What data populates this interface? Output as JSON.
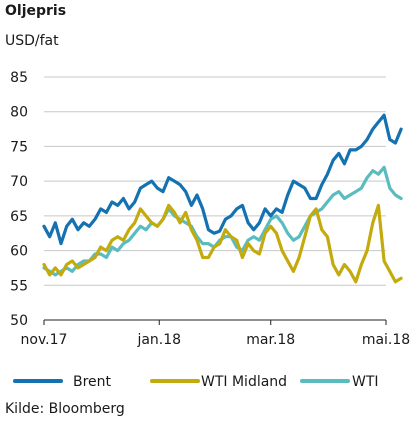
{
  "header": {
    "title": "Oljepris",
    "unit": "USD/fat"
  },
  "footer": {
    "source": "Kilde: Bloomberg"
  },
  "chart_data": {
    "type": "line",
    "title": "Oljepris",
    "ylabel": "USD/fat",
    "xlabel": "",
    "ylim": [
      50,
      85
    ],
    "yticks": [
      50,
      55,
      60,
      65,
      70,
      75,
      80,
      85
    ],
    "xlim": [
      "2017-11-01",
      "2018-05-01"
    ],
    "xticks": [
      {
        "date": "2017-11-01",
        "label": "nov.17"
      },
      {
        "date": "2018-01-01",
        "label": "jan.18"
      },
      {
        "date": "2018-03-01",
        "label": "mar.18"
      },
      {
        "date": "2018-05-01",
        "label": "mai.18"
      }
    ],
    "grid": "horizontal",
    "legend": "bottom",
    "series": [
      {
        "name": "Brent",
        "color": "#1572b0",
        "points": [
          [
            "2017-11-01",
            63.5
          ],
          [
            "2017-11-04",
            62.0
          ],
          [
            "2017-11-07",
            64.0
          ],
          [
            "2017-11-10",
            61.0
          ],
          [
            "2017-11-13",
            63.5
          ],
          [
            "2017-11-16",
            64.5
          ],
          [
            "2017-11-19",
            63.0
          ],
          [
            "2017-11-22",
            64.0
          ],
          [
            "2017-11-25",
            63.5
          ],
          [
            "2017-11-28",
            64.5
          ],
          [
            "2017-12-01",
            66.0
          ],
          [
            "2017-12-04",
            65.5
          ],
          [
            "2017-12-07",
            67.0
          ],
          [
            "2017-12-10",
            66.5
          ],
          [
            "2017-12-13",
            67.5
          ],
          [
            "2017-12-16",
            66.0
          ],
          [
            "2017-12-19",
            67.0
          ],
          [
            "2017-12-22",
            69.0
          ],
          [
            "2017-12-25",
            69.5
          ],
          [
            "2017-12-28",
            70.0
          ],
          [
            "2017-12-31",
            69.0
          ],
          [
            "2018-01-03",
            68.5
          ],
          [
            "2018-01-06",
            70.5
          ],
          [
            "2018-01-09",
            70.0
          ],
          [
            "2018-01-12",
            69.5
          ],
          [
            "2018-01-15",
            68.5
          ],
          [
            "2018-01-18",
            66.5
          ],
          [
            "2018-01-21",
            68.0
          ],
          [
            "2018-01-24",
            66.0
          ],
          [
            "2018-01-27",
            63.0
          ],
          [
            "2018-01-30",
            62.5
          ],
          [
            "2018-02-02",
            62.8
          ],
          [
            "2018-02-05",
            64.5
          ],
          [
            "2018-02-08",
            65.0
          ],
          [
            "2018-02-11",
            66.0
          ],
          [
            "2018-02-14",
            66.5
          ],
          [
            "2018-02-17",
            64.0
          ],
          [
            "2018-02-20",
            63.0
          ],
          [
            "2018-02-23",
            64.0
          ],
          [
            "2018-02-26",
            66.0
          ],
          [
            "2018-03-01",
            65.0
          ],
          [
            "2018-03-04",
            66.0
          ],
          [
            "2018-03-07",
            65.5
          ],
          [
            "2018-03-10",
            68.0
          ],
          [
            "2018-03-13",
            70.0
          ],
          [
            "2018-03-16",
            69.5
          ],
          [
            "2018-03-19",
            69.0
          ],
          [
            "2018-03-22",
            67.5
          ],
          [
            "2018-03-25",
            67.5
          ],
          [
            "2018-03-28",
            69.5
          ],
          [
            "2018-03-31",
            71.0
          ],
          [
            "2018-04-03",
            73.0
          ],
          [
            "2018-04-06",
            74.0
          ],
          [
            "2018-04-09",
            72.5
          ],
          [
            "2018-04-12",
            74.5
          ],
          [
            "2018-04-15",
            74.5
          ],
          [
            "2018-04-18",
            75.0
          ],
          [
            "2018-04-21",
            76.0
          ],
          [
            "2018-04-24",
            77.5
          ],
          [
            "2018-04-27",
            78.5
          ],
          [
            "2018-04-30",
            79.5
          ],
          [
            "2018-05-03",
            76.0
          ],
          [
            "2018-05-06",
            75.5
          ],
          [
            "2018-05-09",
            77.5
          ]
        ]
      },
      {
        "name": "WTI Midland",
        "color": "#c3ab0e",
        "points": [
          [
            "2017-11-01",
            58.0
          ],
          [
            "2017-11-04",
            56.5
          ],
          [
            "2017-11-07",
            57.5
          ],
          [
            "2017-11-10",
            56.5
          ],
          [
            "2017-11-13",
            58.0
          ],
          [
            "2017-11-16",
            58.5
          ],
          [
            "2017-11-19",
            57.5
          ],
          [
            "2017-11-22",
            58.0
          ],
          [
            "2017-11-25",
            58.5
          ],
          [
            "2017-11-28",
            59.0
          ],
          [
            "2017-12-01",
            60.5
          ],
          [
            "2017-12-04",
            60.0
          ],
          [
            "2017-12-07",
            61.5
          ],
          [
            "2017-12-10",
            62.0
          ],
          [
            "2017-12-13",
            61.5
          ],
          [
            "2017-12-16",
            63.0
          ],
          [
            "2017-12-19",
            64.0
          ],
          [
            "2017-12-22",
            66.0
          ],
          [
            "2017-12-25",
            65.0
          ],
          [
            "2017-12-28",
            64.0
          ],
          [
            "2017-12-31",
            63.5
          ],
          [
            "2018-01-03",
            64.5
          ],
          [
            "2018-01-06",
            66.5
          ],
          [
            "2018-01-09",
            65.5
          ],
          [
            "2018-01-12",
            64.0
          ],
          [
            "2018-01-15",
            65.5
          ],
          [
            "2018-01-18",
            63.0
          ],
          [
            "2018-01-21",
            61.5
          ],
          [
            "2018-01-24",
            59.0
          ],
          [
            "2018-01-27",
            59.0
          ],
          [
            "2018-01-30",
            60.5
          ],
          [
            "2018-02-02",
            61.0
          ],
          [
            "2018-02-05",
            63.0
          ],
          [
            "2018-02-08",
            62.0
          ],
          [
            "2018-02-11",
            61.5
          ],
          [
            "2018-02-14",
            59.0
          ],
          [
            "2018-02-17",
            61.0
          ],
          [
            "2018-02-20",
            60.0
          ],
          [
            "2018-02-23",
            59.5
          ],
          [
            "2018-02-26",
            62.5
          ],
          [
            "2018-03-01",
            63.5
          ],
          [
            "2018-03-04",
            62.5
          ],
          [
            "2018-03-07",
            60.0
          ],
          [
            "2018-03-10",
            58.5
          ],
          [
            "2018-03-13",
            57.0
          ],
          [
            "2018-03-16",
            59.0
          ],
          [
            "2018-03-19",
            62.0
          ],
          [
            "2018-03-22",
            65.0
          ],
          [
            "2018-03-25",
            66.0
          ],
          [
            "2018-03-28",
            63.0
          ],
          [
            "2018-03-31",
            62.0
          ],
          [
            "2018-04-03",
            58.0
          ],
          [
            "2018-04-06",
            56.5
          ],
          [
            "2018-04-09",
            58.0
          ],
          [
            "2018-04-12",
            57.0
          ],
          [
            "2018-04-15",
            55.5
          ],
          [
            "2018-04-18",
            58.0
          ],
          [
            "2018-04-21",
            60.0
          ],
          [
            "2018-04-24",
            64.0
          ],
          [
            "2018-04-27",
            66.5
          ],
          [
            "2018-04-30",
            58.5
          ],
          [
            "2018-05-03",
            57.0
          ],
          [
            "2018-05-06",
            55.5
          ],
          [
            "2018-05-09",
            56.0
          ]
        ]
      },
      {
        "name": "WTI",
        "color": "#5bbcc0",
        "points": [
          [
            "2017-11-01",
            57.5
          ],
          [
            "2017-11-04",
            57.0
          ],
          [
            "2017-11-07",
            56.5
          ],
          [
            "2017-11-10",
            57.0
          ],
          [
            "2017-11-13",
            57.5
          ],
          [
            "2017-11-16",
            57.0
          ],
          [
            "2017-11-19",
            58.0
          ],
          [
            "2017-11-22",
            58.5
          ],
          [
            "2017-11-25",
            58.5
          ],
          [
            "2017-11-28",
            59.5
          ],
          [
            "2017-12-01",
            59.5
          ],
          [
            "2017-12-04",
            59.0
          ],
          [
            "2017-12-07",
            60.5
          ],
          [
            "2017-12-10",
            60.0
          ],
          [
            "2017-12-13",
            61.0
          ],
          [
            "2017-12-16",
            61.5
          ],
          [
            "2017-12-19",
            62.5
          ],
          [
            "2017-12-22",
            63.5
          ],
          [
            "2017-12-25",
            63.0
          ],
          [
            "2017-12-28",
            64.0
          ],
          [
            "2017-12-31",
            63.5
          ],
          [
            "2018-01-03",
            64.5
          ],
          [
            "2018-01-06",
            66.0
          ],
          [
            "2018-01-09",
            65.0
          ],
          [
            "2018-01-12",
            64.5
          ],
          [
            "2018-01-15",
            64.0
          ],
          [
            "2018-01-18",
            63.5
          ],
          [
            "2018-01-21",
            62.0
          ],
          [
            "2018-01-24",
            61.0
          ],
          [
            "2018-01-27",
            61.0
          ],
          [
            "2018-01-30",
            60.5
          ],
          [
            "2018-02-02",
            61.5
          ],
          [
            "2018-02-05",
            62.0
          ],
          [
            "2018-02-08",
            62.0
          ],
          [
            "2018-02-11",
            60.5
          ],
          [
            "2018-02-14",
            60.0
          ],
          [
            "2018-02-17",
            61.5
          ],
          [
            "2018-02-20",
            62.0
          ],
          [
            "2018-02-23",
            61.5
          ],
          [
            "2018-02-26",
            63.0
          ],
          [
            "2018-03-01",
            64.5
          ],
          [
            "2018-03-04",
            65.0
          ],
          [
            "2018-03-07",
            64.0
          ],
          [
            "2018-03-10",
            62.5
          ],
          [
            "2018-03-13",
            61.5
          ],
          [
            "2018-03-16",
            62.0
          ],
          [
            "2018-03-19",
            63.5
          ],
          [
            "2018-03-22",
            65.0
          ],
          [
            "2018-03-25",
            65.5
          ],
          [
            "2018-03-28",
            66.0
          ],
          [
            "2018-03-31",
            67.0
          ],
          [
            "2018-04-03",
            68.0
          ],
          [
            "2018-04-06",
            68.5
          ],
          [
            "2018-04-09",
            67.5
          ],
          [
            "2018-04-12",
            68.0
          ],
          [
            "2018-04-15",
            68.5
          ],
          [
            "2018-04-18",
            69.0
          ],
          [
            "2018-04-21",
            70.5
          ],
          [
            "2018-04-24",
            71.5
          ],
          [
            "2018-04-27",
            71.0
          ],
          [
            "2018-04-30",
            72.0
          ],
          [
            "2018-05-03",
            69.0
          ],
          [
            "2018-05-06",
            68.0
          ],
          [
            "2018-05-09",
            67.5
          ]
        ]
      }
    ]
  }
}
